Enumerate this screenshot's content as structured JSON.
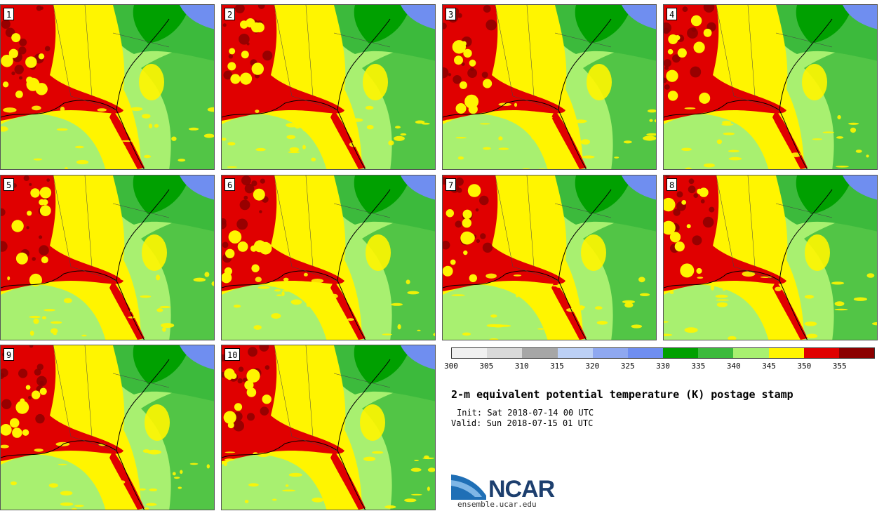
{
  "panels": [
    {
      "label": "1"
    },
    {
      "label": "2"
    },
    {
      "label": "3"
    },
    {
      "label": "4"
    },
    {
      "label": "5"
    },
    {
      "label": "6"
    },
    {
      "label": "7"
    },
    {
      "label": "8"
    },
    {
      "label": "9"
    },
    {
      "label": "10"
    }
  ],
  "colorbar": {
    "ticks": [
      "300",
      "305",
      "310",
      "315",
      "320",
      "325",
      "330",
      "335",
      "340",
      "345",
      "350",
      "355"
    ],
    "colors": [
      "#f0f0f0",
      "#d9d9d9",
      "#a6a6a6",
      "#bcd0f5",
      "#8fa8f0",
      "#6f8ef0",
      "#00a000",
      "#3cba3c",
      "#a8f070",
      "#fff500",
      "#e00000",
      "#8b0000"
    ]
  },
  "title": "2-m equivalent potential temperature (K) postage stamp",
  "init": "Init: Sat 2018-07-14 00 UTC",
  "valid": "Valid: Sun 2018-07-15 01 UTC",
  "logo": {
    "text": "NCAR",
    "site": "ensemble.ucar.edu"
  }
}
